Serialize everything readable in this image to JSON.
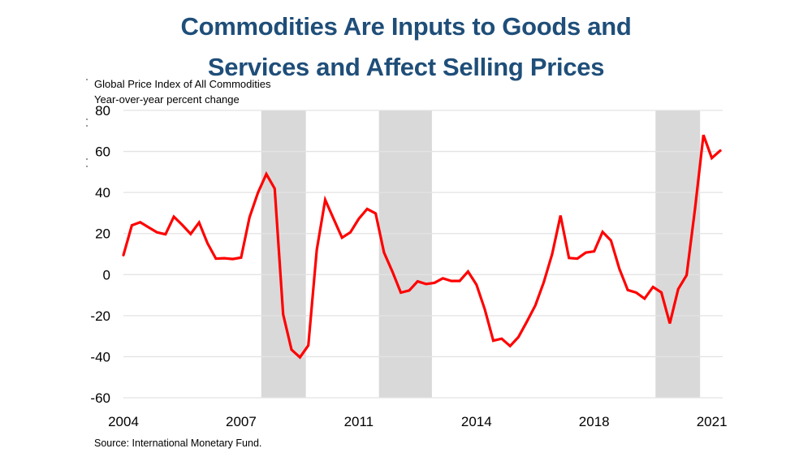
{
  "title_lines": [
    "Commodities Are Inputs to Goods and",
    "Services and Affect Selling Prices"
  ],
  "subtitle_lines": [
    "Global Price Index of All Commodities",
    "Year-over-year percent change"
  ],
  "source": "Source: International Monetary Fund.",
  "colors": {
    "title": "#1F4E79",
    "line": "#FF0000",
    "shading": "#D9D9D9",
    "grid": "#E3E3E3"
  },
  "chart_data": {
    "type": "line",
    "title": "Commodities Are Inputs to Goods and Services and Affect Selling Prices",
    "subtitle": "Global Price Index of All Commodities, Year-over-year percent change",
    "xlabel": "",
    "ylabel": "Year-over-year percent change",
    "frequency": "quarterly",
    "x_start": "2004 Q1",
    "x_end": "2021 Q4",
    "x_tick_labels": [
      {
        "index": 0,
        "label": "2004"
      },
      {
        "index": 14,
        "label": "2007"
      },
      {
        "index": 28,
        "label": "2011"
      },
      {
        "index": 42,
        "label": "2014"
      },
      {
        "index": 56,
        "label": "2018"
      },
      {
        "index": 70,
        "label": "2021"
      }
    ],
    "ylim": [
      -60,
      80
    ],
    "y_ticks": [
      80,
      60,
      40,
      20,
      0,
      -20,
      -40,
      -60
    ],
    "grid": true,
    "legend": "none",
    "shaded_periods_index": [
      [
        16.4,
        21.7
      ],
      [
        30.4,
        36.7
      ],
      [
        63.3,
        68.6
      ]
    ],
    "series": [
      {
        "name": "Global Price Index of All Commodities (YoY %)",
        "values": [
          9.5,
          24,
          25.5,
          23,
          20.6,
          19.6,
          28.2,
          24.2,
          19.8,
          25.4,
          15.3,
          7.8,
          8,
          7.6,
          8.3,
          27.9,
          39.8,
          49,
          41.9,
          -19.4,
          -36.6,
          -40.3,
          -34.5,
          12,
          36.4,
          27.2,
          18,
          20.6,
          27.2,
          32,
          29.8,
          10.8,
          1.4,
          -8.8,
          -7.7,
          -3.3,
          -4.6,
          -4,
          -1.8,
          -3.1,
          -3.1,
          1.5,
          -4.9,
          -17,
          -32.2,
          -31.2,
          -34.8,
          -30.4,
          -22.9,
          -15,
          -3.8,
          10,
          28.8,
          8.1,
          7.8,
          10.7,
          11.3,
          20.8,
          16.6,
          2.8,
          -7.5,
          -8.8,
          -11.7,
          -6,
          -8.7,
          -23.8,
          -7.1,
          -0.3,
          32,
          68,
          56.8,
          60.4
        ]
      }
    ]
  }
}
